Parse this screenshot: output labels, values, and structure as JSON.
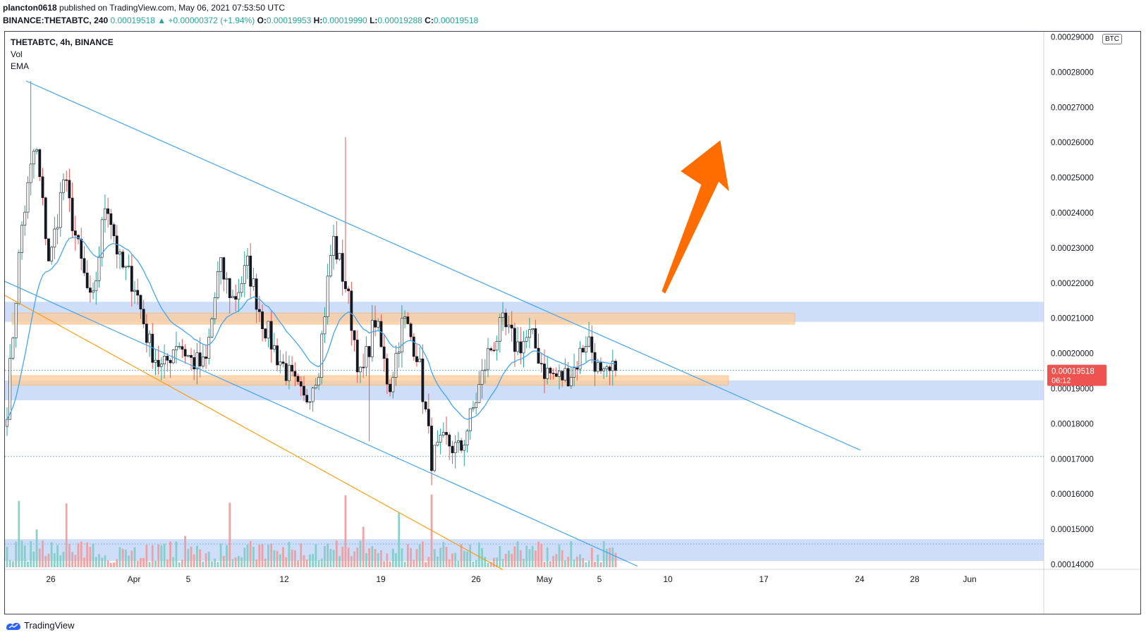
{
  "header": {
    "publisher": "plancton0618",
    "published_text": "published on TradingView.com, May 06, 2021 07:53:50 UTC",
    "symbol": "BINANCE:THETABTC, 240",
    "last": "0.00019518",
    "change": "+0.00000372 (+1.94%)",
    "o_label": "O:",
    "o": "0.00019953",
    "h_label": "H:",
    "h": "0.00019990",
    "l_label": "L:",
    "l": "0.00019288",
    "c_label": "C:",
    "c": "0.00019518"
  },
  "legend": {
    "title": "THETABTC, 4h, BINANCE",
    "vol": "Vol",
    "ema": "EMA"
  },
  "currency_badge": "BTC",
  "price_tag": {
    "value": "0.00019518",
    "countdown": "06:12",
    "color": "#ef5350"
  },
  "footer": {
    "brand": "TradingView"
  },
  "colors": {
    "up": "#26a69a",
    "down": "#ef5350",
    "candle_body": "#131722",
    "channel": "#42a5f5",
    "ema": "#42a5f5",
    "zone_blue": "#b3ccf5",
    "zone_orange": "#ffcc99",
    "support_line": "#ff9800",
    "arrow": "#ff6d00"
  },
  "chart_data": {
    "type": "candlestick",
    "title": "THETABTC, 4h, BINANCE",
    "ylim": [
      0.000138,
      0.000295
    ],
    "y_ticks": [
      "0.00014000",
      "0.00015000",
      "0.00016000",
      "0.00017000",
      "0.00018000",
      "0.00019000",
      "0.00020000",
      "0.00021000",
      "0.00022000",
      "0.00023000",
      "0.00024000",
      "0.00025000",
      "0.00026000",
      "0.00027000",
      "0.00028000",
      "0.00029000"
    ],
    "x_ticks": [
      "26",
      "Apr",
      "5",
      "12",
      "19",
      "26",
      "May",
      "5",
      "10",
      "17",
      "24",
      "28",
      "Jun"
    ],
    "series": [
      {
        "name": "THETABTC",
        "points": [
          [
            "Mar 24",
            0.000185
          ],
          [
            "Mar 24",
            0.000235
          ],
          [
            "Mar 25",
            0.00026
          ],
          [
            "Mar 25",
            0.000225
          ],
          [
            "Mar 26",
            0.00025
          ],
          [
            "Mar 27",
            0.00023
          ],
          [
            "Mar 28",
            0.000212
          ],
          [
            "Mar 29",
            0.000245
          ],
          [
            "Mar 30",
            0.000225
          ],
          [
            "Mar 31",
            0.00022
          ],
          [
            "Apr 1",
            0.000203
          ],
          [
            "Apr 2",
            0.000195
          ],
          [
            "Apr 3",
            0.000204
          ],
          [
            "Apr 5",
            0.000198
          ],
          [
            "Apr 6",
            0.000196
          ],
          [
            "Apr 7",
            0.000225
          ],
          [
            "Apr 8",
            0.000215
          ],
          [
            "Apr 9",
            0.000225
          ],
          [
            "Apr 10",
            0.00021
          ],
          [
            "Apr 12",
            0.0002
          ],
          [
            "Apr 13",
            0.000193
          ],
          [
            "Apr 14",
            0.000186
          ],
          [
            "Apr 15",
            0.000196
          ],
          [
            "Apr 16",
            0.000233
          ],
          [
            "Apr 17",
            0.000218
          ],
          [
            "Apr 18",
            0.000192
          ],
          [
            "Apr 19",
            0.00021
          ],
          [
            "Apr 20",
            0.00019
          ],
          [
            "Apr 21",
            0.00021
          ],
          [
            "Apr 22",
            0.0002
          ],
          [
            "Apr 23",
            0.00017
          ],
          [
            "Apr 24",
            0.000175
          ],
          [
            "Apr 25",
            0.000172
          ],
          [
            "Apr 26",
            0.000185
          ],
          [
            "Apr 27",
            0.0002
          ],
          [
            "Apr 28",
            0.000208
          ],
          [
            "Apr 29",
            0.000202
          ],
          [
            "Apr 30",
            0.000205
          ],
          [
            "May 1",
            0.000195
          ],
          [
            "May 2",
            0.000193
          ],
          [
            "May 3",
            0.000195
          ],
          [
            "May 4",
            0.000205
          ],
          [
            "May 5",
            0.000192
          ],
          [
            "May 6",
            0.000195
          ]
        ]
      },
      {
        "name": "EMA"
      },
      {
        "name": "Vol"
      }
    ],
    "annotations": {
      "zones": [
        {
          "from": 0.000209,
          "to": 0.0002147,
          "color": "blue"
        },
        {
          "from": 0.0002083,
          "to": 0.0002115,
          "color": "orange"
        },
        {
          "from": 0.0001867,
          "to": 0.0001923,
          "color": "blue"
        },
        {
          "from": 0.000191,
          "to": 0.0001937,
          "color": "orange"
        },
        {
          "from": 0.000141,
          "to": 0.0001472,
          "color": "blue"
        }
      ],
      "horizontal_levels": [
        0.00019518,
        0.0001707
      ],
      "arrow": "up"
    }
  }
}
